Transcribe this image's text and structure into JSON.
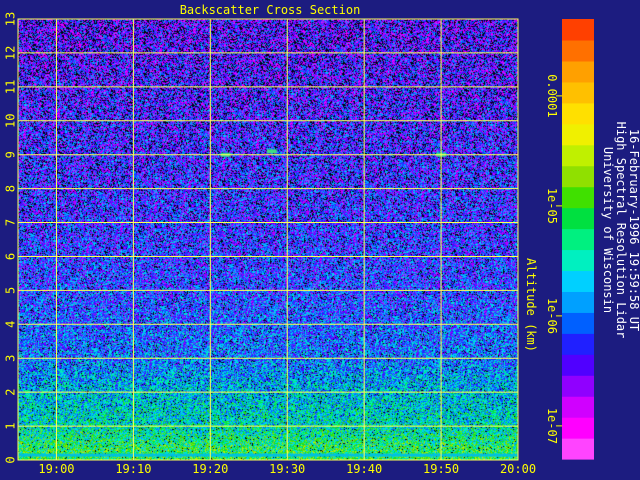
{
  "colors": {
    "background": "#1c1c80",
    "grid": "#ffff55",
    "label_text": "#ffff00",
    "caption_text": "#ffffff"
  },
  "caption": {
    "line1": "University of Wisconsin",
    "line2": "High Spectral Resolution Lidar",
    "line3": "16-February-1996 19:59:58 UT"
  },
  "chart_data": {
    "type": "heatmap",
    "title": "Backscatter Cross Section",
    "xlabel": "",
    "ylabel": "Altitude (km)",
    "x_range": [
      "18:55",
      "20:00"
    ],
    "x_ticks": [
      "19:00",
      "19:10",
      "19:20",
      "19:30",
      "19:40",
      "19:50",
      "20:00"
    ],
    "x_tick_minutes": [
      5,
      15,
      25,
      35,
      45,
      55,
      65
    ],
    "ylim": [
      0,
      13
    ],
    "y_ticks": [
      0,
      1,
      2,
      3,
      4,
      5,
      6,
      7,
      8,
      9,
      10,
      11,
      12,
      13
    ],
    "grid": true,
    "colorbar": {
      "scale": "log",
      "range": [
        5e-08,
        0.0005
      ],
      "ticks": [
        "0.0001",
        "1e-05",
        "1e-06",
        "1e-07"
      ],
      "tick_values": [
        0.0001,
        1e-05,
        1e-06,
        1e-07
      ],
      "colors": [
        "#ff44ff",
        "#ff00ff",
        "#d000ff",
        "#9000ff",
        "#5000ff",
        "#2020ff",
        "#0060ff",
        "#00a0ff",
        "#00d0ff",
        "#00f0c0",
        "#00f080",
        "#00e040",
        "#40e000",
        "#90e000",
        "#c0f000",
        "#f0f000",
        "#ffe000",
        "#ffc000",
        "#ffa000",
        "#ff7000",
        "#ff4000"
      ]
    },
    "altitude_profile": [
      {
        "altitude_km": 0.25,
        "level": 0.55
      },
      {
        "altitude_km": 1,
        "level": 0.45
      },
      {
        "altitude_km": 2,
        "level": 0.4
      },
      {
        "altitude_km": 3,
        "level": 0.32
      },
      {
        "altitude_km": 5,
        "level": 0.27
      },
      {
        "altitude_km": 7,
        "level": 0.25
      },
      {
        "altitude_km": 9,
        "level": 0.24
      },
      {
        "altitude_km": 11,
        "level": 0.22
      },
      {
        "altitude_km": 13,
        "level": 0.2
      }
    ],
    "noise_level_by_altitude": [
      {
        "altitude_km": 0,
        "noise": 0.05
      },
      {
        "altitude_km": 4,
        "noise": 0.12
      },
      {
        "altitude_km": 8,
        "noise": 0.3
      },
      {
        "altitude_km": 13,
        "noise": 0.45
      }
    ],
    "features": [
      {
        "type": "ground_layer",
        "altitude_km": 0.1
      },
      {
        "type": "cloud_speck",
        "altitude_km": 9.0,
        "time": "19:22"
      },
      {
        "type": "cloud_speck",
        "altitude_km": 9.1,
        "time": "19:28"
      },
      {
        "type": "cloud_speck",
        "altitude_km": 9.0,
        "time": "19:50"
      }
    ]
  }
}
